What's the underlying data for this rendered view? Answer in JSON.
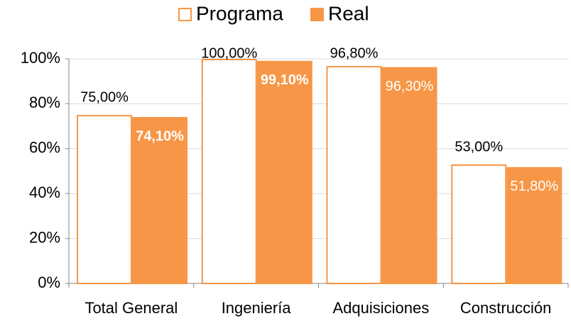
{
  "chart_data": {
    "type": "bar",
    "categories": [
      "Total General",
      "Ingeniería",
      "Adquisiciones",
      "Construcción"
    ],
    "series": [
      {
        "name": "Programa",
        "color": "#f79646",
        "fill": "#ffffff",
        "values": [
          75,
          100,
          96.8,
          53
        ],
        "value_labels": [
          "75,00%",
          "100,00%",
          "96,80%",
          "53,00%"
        ]
      },
      {
        "name": "Real",
        "color": "#f79646",
        "fill": "#f79646",
        "values": [
          74.1,
          99.1,
          96.3,
          51.8
        ],
        "value_labels": [
          "74,10%",
          "99,10%",
          "96,30%",
          "51,80%"
        ],
        "value_label_weights": [
          "bold",
          "bold",
          "normal",
          "normal"
        ]
      }
    ],
    "ylim": [
      0,
      100
    ],
    "yticks": [
      {
        "value": 0,
        "label": "0%"
      },
      {
        "value": 20,
        "label": "20%"
      },
      {
        "value": 40,
        "label": "40%"
      },
      {
        "value": 60,
        "label": "60%"
      },
      {
        "value": 80,
        "label": "80%"
      },
      {
        "value": 100,
        "label": "100%"
      }
    ],
    "grid": true,
    "legend": "top"
  }
}
